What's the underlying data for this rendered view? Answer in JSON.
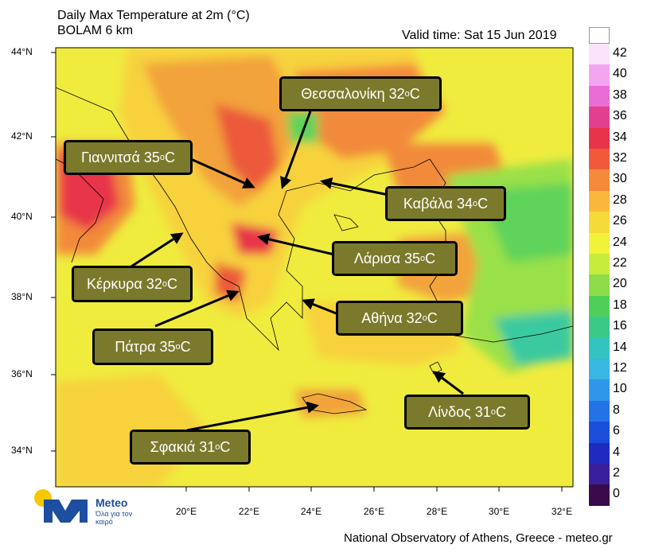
{
  "header": {
    "title_line1": "Daily Max Temperature at 2m (°C)",
    "title_line2": "BOLAM 6 km",
    "valid_time": "Valid time: Sat 15 Jun 2019"
  },
  "axes": {
    "lat_labels": [
      "44°N",
      "42°N",
      "40°N",
      "38°N",
      "36°N",
      "34°N"
    ],
    "lon_labels": [
      "20°E",
      "22°E",
      "24°E",
      "26°E",
      "28°E",
      "30°E",
      "32°E"
    ]
  },
  "colorbar": {
    "labels": [
      "42",
      "40",
      "38",
      "36",
      "34",
      "32",
      "30",
      "28",
      "26",
      "24",
      "22",
      "20",
      "18",
      "16",
      "14",
      "12",
      "10",
      "8",
      "6",
      "4",
      "2",
      "0"
    ],
    "colors": [
      "#fbe3fb",
      "#f3a6f0",
      "#ea6dd6",
      "#e23f8e",
      "#e8344a",
      "#f05a3a",
      "#f58a3a",
      "#f9b83b",
      "#f6da3a",
      "#f1f23a",
      "#c6ec3c",
      "#8fdc4a",
      "#4fcf5a",
      "#3ac987",
      "#33c4c0",
      "#37b7e1",
      "#2e97e8",
      "#2473e6",
      "#1b4ddb",
      "#1f2bbf",
      "#3a1f9d",
      "#3b0a4a"
    ]
  },
  "cities": [
    {
      "name": "Θεσσαλονίκη 32",
      "unit": "C"
    },
    {
      "name": "Γιαννιτσά 35",
      "unit": "C"
    },
    {
      "name": "Καβάλα 34",
      "unit": "C"
    },
    {
      "name": "Λάρισα 35",
      "unit": "C"
    },
    {
      "name": "Κέρκυρα 32",
      "unit": "C"
    },
    {
      "name": "Αθήνα 32",
      "unit": "C"
    },
    {
      "name": "Πάτρα 35",
      "unit": "C"
    },
    {
      "name": "Λίνδος 31",
      "unit": "C"
    },
    {
      "name": "Σφακιά 31",
      "unit": "C"
    }
  ],
  "logo": {
    "name": "Meteo",
    "tagline": "Όλα για τον καιρό"
  },
  "footer": "National Observatory of Athens, Greece - meteo.gr"
}
